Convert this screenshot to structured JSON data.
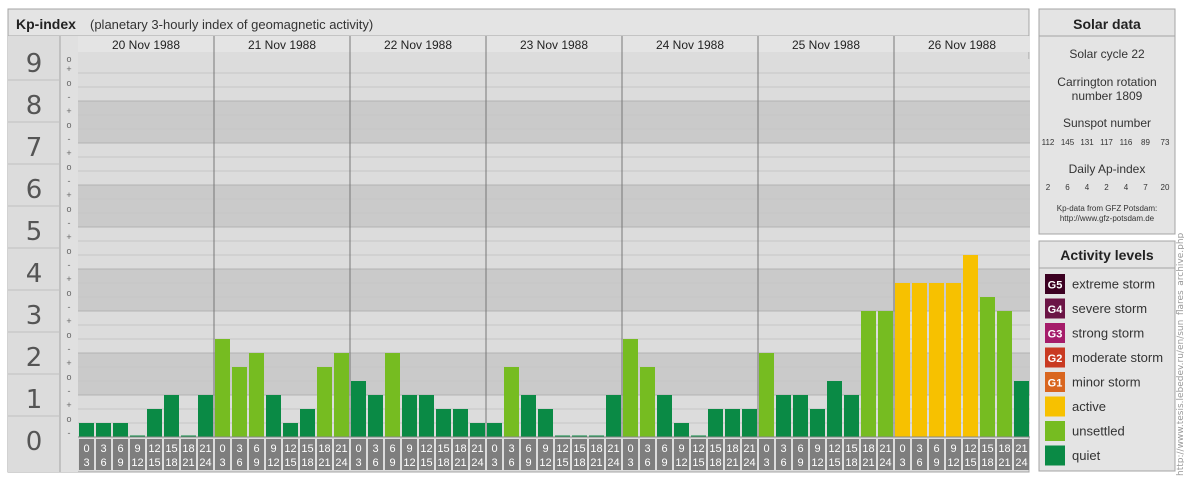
{
  "header": {
    "title": "Kp-index",
    "subtitle": "(planetary 3-hourly index of geomagnetic activity)"
  },
  "colors": {
    "quiet": "#0a8a45",
    "unsettled": "#76bc21",
    "active": "#f7c100",
    "g1": "#d9661f",
    "g2": "#c93a22",
    "g3": "#a51c6a",
    "g4": "#6b1445",
    "g5": "#3b0021",
    "band_dark": "#cacaca",
    "band_light": "#dcdcdc",
    "tick_box": "#7e7e7e"
  },
  "chart_data": {
    "type": "bar",
    "ylim": [
      0,
      9
    ],
    "y_ticks": [
      "0",
      "1",
      "2",
      "3",
      "4",
      "5",
      "6",
      "7",
      "8",
      "9"
    ],
    "sub_tick_labels": [
      "-",
      "o",
      "+"
    ],
    "days": [
      "20 Nov 1988",
      "21 Nov 1988",
      "22 Nov 1988",
      "23 Nov 1988",
      "24 Nov 1988",
      "25 Nov 1988",
      "26 Nov 1988"
    ],
    "interval_start": [
      "0",
      "3",
      "6",
      "9",
      "12",
      "15",
      "18",
      "21"
    ],
    "interval_end": [
      "3",
      "6",
      "9",
      "12",
      "15",
      "18",
      "21",
      "24"
    ],
    "values": [
      [
        0.333,
        0.333,
        0.333,
        0,
        0.667,
        1,
        0,
        1
      ],
      [
        2.333,
        1.667,
        2,
        1,
        0.333,
        0.667,
        1.667,
        2
      ],
      [
        1.333,
        1,
        2,
        1,
        1,
        0.667,
        0.667,
        0.333
      ],
      [
        0.333,
        1.667,
        1,
        0.667,
        0,
        0,
        0,
        1
      ],
      [
        2.333,
        1.667,
        1,
        0.333,
        0,
        0.667,
        0.667,
        0.667
      ],
      [
        2,
        1,
        1,
        0.667,
        1.333,
        1,
        3,
        3
      ],
      [
        3.667,
        3.667,
        3.667,
        3.667,
        4.333,
        3.333,
        3,
        1.333
      ]
    ]
  },
  "solar": {
    "title": "Solar data",
    "cycle": "Solar cycle 22",
    "carrington_1": "Carrington rotation",
    "carrington_2": "number 1809",
    "sunspot_title": "Sunspot number",
    "sunspots": [
      "112",
      "145",
      "131",
      "117",
      "116",
      "89",
      "73"
    ],
    "ap_title": "Daily Ap-index",
    "ap": [
      "2",
      "6",
      "4",
      "2",
      "4",
      "7",
      "20"
    ],
    "source_1": "Kp-data from GFZ Potsdam:",
    "source_2": "http://www.gfz-potsdam.de"
  },
  "activity": {
    "title": "Activity levels",
    "levels": [
      {
        "badge": "G5",
        "label": "extreme storm",
        "color": "#3b0021"
      },
      {
        "badge": "G4",
        "label": "severe storm",
        "color": "#6b1445"
      },
      {
        "badge": "G3",
        "label": "strong storm",
        "color": "#a51c6a"
      },
      {
        "badge": "G2",
        "label": "moderate storm",
        "color": "#c93a22"
      },
      {
        "badge": "G1",
        "label": "minor storm",
        "color": "#d9661f"
      },
      {
        "badge": "",
        "label": "active",
        "color": "#f7c100"
      },
      {
        "badge": "",
        "label": "unsettled",
        "color": "#76bc21"
      },
      {
        "badge": "",
        "label": "quiet",
        "color": "#0a8a45"
      }
    ]
  },
  "watermark": "http://www.tesis.lebedev.ru/en/sun_flares_archive.php"
}
